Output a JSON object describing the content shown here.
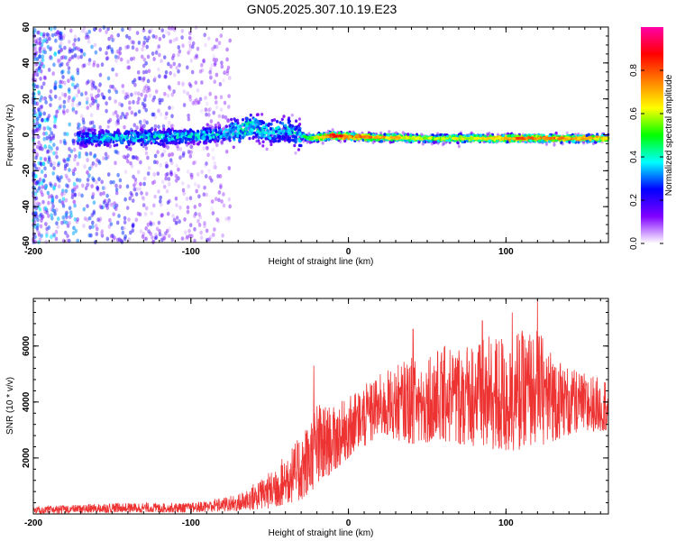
{
  "title": "GN05.2025.307.10.19.E23",
  "chart_data": [
    {
      "type": "heatmap",
      "xlabel": "Height of straight line (km)",
      "ylabel": "Frequency (Hz)",
      "xlim": [
        -200,
        165
      ],
      "ylim": [
        -60,
        60
      ],
      "xticks": [
        -200,
        -100,
        0,
        100
      ],
      "yticks": [
        -60,
        -40,
        -20,
        0,
        20,
        40,
        60
      ],
      "colorbar": {
        "label": "Normalized spectral amplitude",
        "range": [
          0,
          1
        ],
        "ticks": [
          0.0,
          0.2,
          0.4,
          0.6,
          0.8
        ],
        "colormap": [
          "#ffffff",
          "#8000ff",
          "#0000ff",
          "#00ffff",
          "#00ff00",
          "#ffff00",
          "#ff8000",
          "#ff0000",
          "#ff00aa"
        ]
      },
      "ridge": [
        {
          "x": -170,
          "f": -1.5,
          "a": 0.35
        },
        {
          "x": -150,
          "f": -2.0,
          "a": 0.4
        },
        {
          "x": -130,
          "f": -1.5,
          "a": 0.4
        },
        {
          "x": -110,
          "f": -1.0,
          "a": 0.4
        },
        {
          "x": -95,
          "f": -0.5,
          "a": 0.4
        },
        {
          "x": -80,
          "f": 0.5,
          "a": 0.4
        },
        {
          "x": -70,
          "f": 2.0,
          "a": 0.45
        },
        {
          "x": -60,
          "f": 5.0,
          "a": 0.45
        },
        {
          "x": -50,
          "f": 1.0,
          "a": 0.4
        },
        {
          "x": -40,
          "f": 3.0,
          "a": 0.4
        },
        {
          "x": -32,
          "f": 0.0,
          "a": 0.4
        },
        {
          "x": -25,
          "f": -2.0,
          "a": 0.55
        },
        {
          "x": -10,
          "f": -0.5,
          "a": 0.9
        },
        {
          "x": 0,
          "f": -1.0,
          "a": 0.8
        },
        {
          "x": 20,
          "f": -1.5,
          "a": 0.75
        },
        {
          "x": 50,
          "f": -2.0,
          "a": 0.6
        },
        {
          "x": 80,
          "f": -2.0,
          "a": 0.65
        },
        {
          "x": 110,
          "f": -2.0,
          "a": 0.8
        },
        {
          "x": 140,
          "f": -2.0,
          "a": 0.75
        },
        {
          "x": 165,
          "f": -2.0,
          "a": 0.7
        }
      ]
    },
    {
      "type": "line",
      "xlabel": "Height of straight line (km)",
      "ylabel": "SNR (10 * v/v)",
      "xlim": [
        -200,
        165
      ],
      "ylim": [
        0,
        7700
      ],
      "xticks": [
        -200,
        -100,
        0,
        100
      ],
      "yticks": [
        2000,
        4000,
        6000
      ],
      "color": "#ee3333",
      "envelope": [
        {
          "x": -200,
          "lo": 0,
          "hi": 250
        },
        {
          "x": -150,
          "lo": 50,
          "hi": 400
        },
        {
          "x": -100,
          "lo": 50,
          "hi": 400
        },
        {
          "x": -70,
          "lo": 100,
          "hi": 700
        },
        {
          "x": -50,
          "lo": 200,
          "hi": 1500
        },
        {
          "x": -30,
          "lo": 500,
          "hi": 2800
        },
        {
          "x": -20,
          "lo": 1000,
          "hi": 4000
        },
        {
          "x": -10,
          "lo": 1500,
          "hi": 3800
        },
        {
          "x": 0,
          "lo": 2000,
          "hi": 4200
        },
        {
          "x": 20,
          "lo": 2800,
          "hi": 5000
        },
        {
          "x": 40,
          "lo": 2500,
          "hi": 5600
        },
        {
          "x": 60,
          "lo": 2600,
          "hi": 6000
        },
        {
          "x": 80,
          "lo": 2400,
          "hi": 6200
        },
        {
          "x": 100,
          "lo": 2200,
          "hi": 6500
        },
        {
          "x": 120,
          "lo": 2400,
          "hi": 6600
        },
        {
          "x": 140,
          "lo": 2800,
          "hi": 5200
        },
        {
          "x": 165,
          "lo": 3000,
          "hi": 4800
        }
      ],
      "peaks": [
        {
          "x": -22,
          "y": 5300
        },
        {
          "x": 41,
          "y": 6600
        },
        {
          "x": 85,
          "y": 6900
        },
        {
          "x": 104,
          "y": 7200
        },
        {
          "x": 120,
          "y": 7700
        }
      ]
    }
  ]
}
